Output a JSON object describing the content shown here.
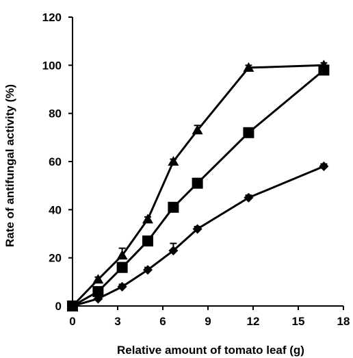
{
  "chart_data": {
    "type": "line",
    "title": "",
    "xlabel": "Relative amount of tomato leaf (g)",
    "ylabel": "Rate of antifungal activity (%)",
    "xlim": [
      0,
      18
    ],
    "ylim": [
      0,
      120
    ],
    "xticks": [
      0,
      3,
      6,
      9,
      12,
      15,
      18
    ],
    "yticks": [
      0,
      20,
      40,
      60,
      80,
      100,
      120
    ],
    "grid": false,
    "legend": "none",
    "color": "#000000",
    "series": [
      {
        "marker": "triangle",
        "x": [
          0,
          1.7,
          3.3,
          5.0,
          6.7,
          8.3,
          11.7,
          16.7
        ],
        "y": [
          0,
          11,
          21,
          36,
          60,
          73,
          99,
          100
        ],
        "err": [
          0,
          1,
          3,
          1,
          1,
          2,
          1,
          1
        ]
      },
      {
        "marker": "square",
        "x": [
          0,
          1.7,
          3.3,
          5.0,
          6.7,
          8.3,
          11.7,
          16.7
        ],
        "y": [
          0,
          6,
          16,
          27,
          41,
          51,
          72,
          98
        ],
        "err": [
          0,
          1,
          2,
          1,
          1,
          1,
          1,
          1
        ]
      },
      {
        "marker": "diamond",
        "x": [
          0,
          1.7,
          3.3,
          5.0,
          6.7,
          8.3,
          11.7,
          16.7
        ],
        "y": [
          0,
          3,
          8,
          15,
          23,
          32,
          45,
          58
        ],
        "err": [
          0,
          1,
          1,
          1,
          3,
          1,
          1,
          1
        ]
      }
    ]
  }
}
